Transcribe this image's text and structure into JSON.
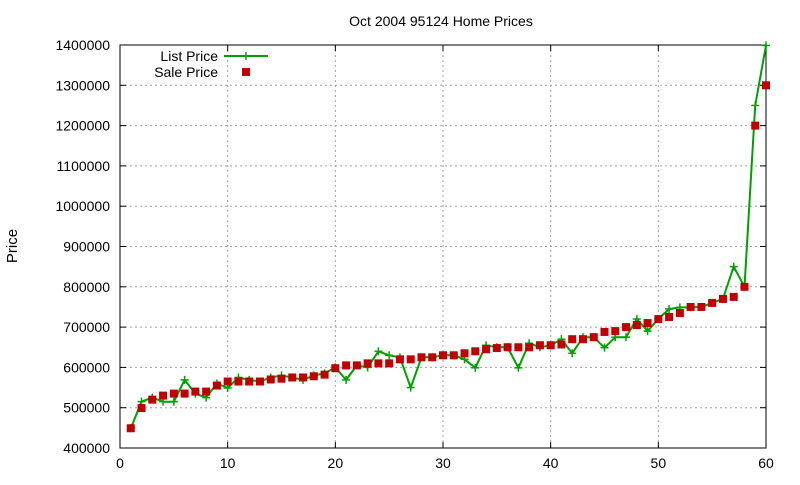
{
  "chart_data": {
    "type": "line",
    "title": "Oct 2004 95124 Home Prices",
    "xlabel": "",
    "ylabel": "Price",
    "xlim": [
      0,
      60
    ],
    "ylim": [
      400000,
      1400000
    ],
    "xticks": [
      0,
      10,
      20,
      30,
      40,
      50,
      60
    ],
    "yticks": [
      400000,
      500000,
      600000,
      700000,
      800000,
      900000,
      1000000,
      1100000,
      1200000,
      1300000,
      1400000
    ],
    "grid": true,
    "legend_position": "top-left",
    "x": [
      1,
      2,
      3,
      4,
      5,
      6,
      7,
      8,
      9,
      10,
      11,
      12,
      13,
      14,
      15,
      16,
      17,
      18,
      19,
      20,
      21,
      22,
      23,
      24,
      25,
      26,
      27,
      28,
      29,
      30,
      31,
      32,
      33,
      34,
      35,
      36,
      37,
      38,
      39,
      40,
      41,
      42,
      43,
      44,
      45,
      46,
      47,
      48,
      49,
      50,
      51,
      52,
      53,
      54,
      55,
      56,
      57,
      58,
      59,
      60
    ],
    "series": [
      {
        "name": "List Price",
        "color": "#00a000",
        "marker": "plus",
        "values": [
          449000,
          515000,
          525000,
          515000,
          515000,
          569000,
          535000,
          525000,
          560000,
          549000,
          575000,
          569000,
          565000,
          575000,
          580000,
          575000,
          569000,
          580000,
          585000,
          600000,
          569000,
          605000,
          600000,
          640000,
          630000,
          625000,
          550000,
          625000,
          625000,
          630000,
          630000,
          620000,
          599000,
          655000,
          650000,
          650000,
          599000,
          660000,
          650000,
          655000,
          670000,
          635000,
          675000,
          675000,
          649000,
          675000,
          675000,
          720000,
          690000,
          720000,
          745000,
          749000,
          749000,
          750000,
          760000,
          770000,
          850000,
          800000,
          1250000,
          1399000
        ]
      },
      {
        "name": "Sale Price",
        "color": "#c00000",
        "marker": "square",
        "values": [
          449000,
          499000,
          520000,
          530000,
          535000,
          535000,
          540000,
          540000,
          555000,
          565000,
          565000,
          565000,
          565000,
          570000,
          572000,
          575000,
          575000,
          578000,
          582000,
          598000,
          605000,
          605000,
          610000,
          610000,
          610000,
          620000,
          620000,
          625000,
          625000,
          630000,
          630000,
          635000,
          640000,
          645000,
          648000,
          650000,
          650000,
          650000,
          655000,
          655000,
          657000,
          670000,
          670000,
          675000,
          688000,
          690000,
          700000,
          705000,
          710000,
          720000,
          725000,
          735000,
          750000,
          750000,
          760000,
          770000,
          775000,
          800000,
          1200000,
          1300000
        ]
      }
    ]
  }
}
